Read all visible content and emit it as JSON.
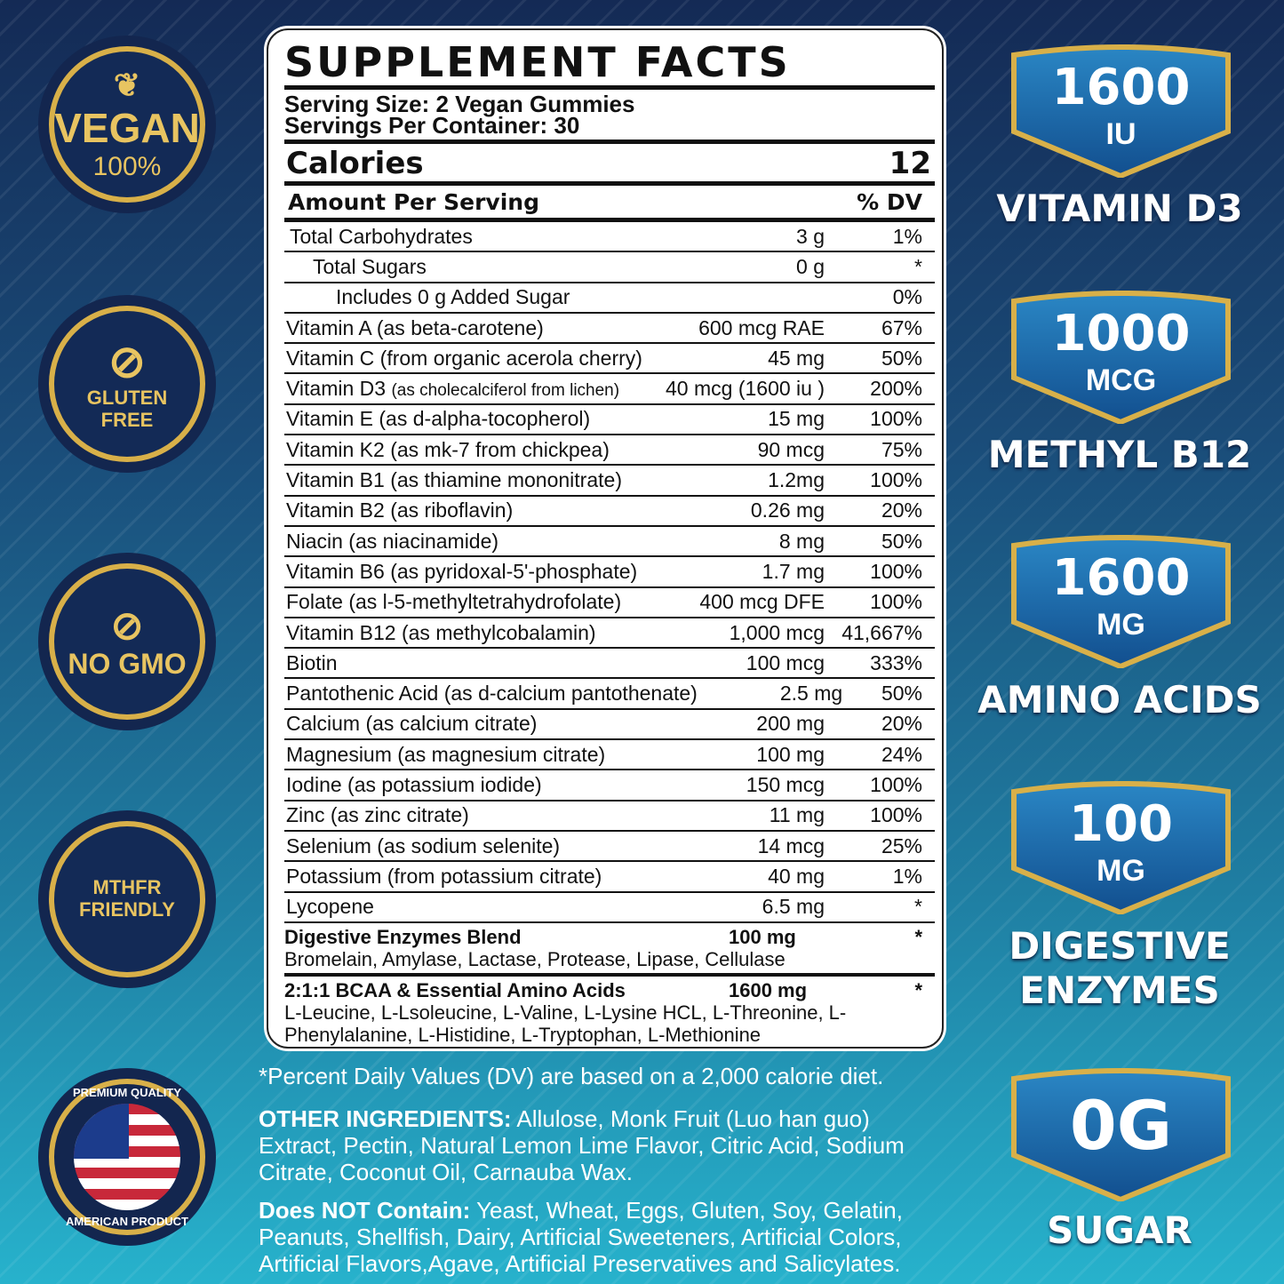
{
  "badges": [
    {
      "name": "vegan",
      "line1": "VEGAN",
      "line2": "100%"
    },
    {
      "name": "gluten-free",
      "line1": "GLUTEN",
      "line2": "FREE"
    },
    {
      "name": "no-gmo",
      "line1": "NO GMO",
      "line2": ""
    },
    {
      "name": "mthfr",
      "line1": "MTHFR",
      "line2": "FRIENDLY"
    },
    {
      "name": "american",
      "line1": "PREMIUM QUALITY",
      "line2": "AMERICAN PRODUCT"
    }
  ],
  "facts": {
    "title": "SUPPLEMENT FACTS",
    "serving_size": "Serving Size: 2 Vegan Gummies",
    "servings": "Servings Per Container: 30",
    "calories_label": "Calories",
    "calories": "12",
    "amount_label": "Amount Per Serving",
    "dv_label": "% DV",
    "rows": [
      {
        "name": "Total Carbohydrates",
        "note": "",
        "amount": "3 g",
        "dv": "1%",
        "indent": 1
      },
      {
        "name": "Total Sugars",
        "note": "",
        "amount": "0 g",
        "dv": "*",
        "indent": 2
      },
      {
        "name": "Includes 0 g Added Sugar",
        "note": "",
        "amount": "",
        "dv": "0%",
        "indent": 3
      },
      {
        "name": "Vitamin A (as beta-carotene)",
        "note": "",
        "amount": "600 mcg RAE",
        "dv": "67%",
        "indent": 0
      },
      {
        "name": "Vitamin C (from organic acerola cherry)",
        "note": "",
        "amount": "45 mg",
        "dv": "50%",
        "indent": 0
      },
      {
        "name": "Vitamin D3 ",
        "note": "(as cholecalciferol from lichen)",
        "amount": "40 mcg (1600 iu )",
        "dv": "200%",
        "indent": 0
      },
      {
        "name": "Vitamin E (as d-alpha-tocopherol)",
        "note": "",
        "amount": "15 mg",
        "dv": "100%",
        "indent": 0
      },
      {
        "name": "Vitamin K2 (as mk-7 from chickpea)",
        "note": "",
        "amount": "90 mcg",
        "dv": "75%",
        "indent": 0
      },
      {
        "name": "Vitamin B1 (as thiamine mononitrate)",
        "note": "",
        "amount": "1.2mg",
        "dv": "100%",
        "indent": 0
      },
      {
        "name": "Vitamin B2 (as riboflavin)",
        "note": "",
        "amount": "0.26 mg",
        "dv": "20%",
        "indent": 0
      },
      {
        "name": "Niacin (as niacinamide)",
        "note": "",
        "amount": "8 mg",
        "dv": "50%",
        "indent": 0
      },
      {
        "name": "Vitamin B6 (as pyridoxal-5'-phosphate)",
        "note": "",
        "amount": "1.7 mg",
        "dv": "100%",
        "indent": 0
      },
      {
        "name": "Folate (as l-5-methyltetrahydrofolate)",
        "note": "",
        "amount": "400 mcg DFE",
        "dv": "100%",
        "indent": 0
      },
      {
        "name": "Vitamin B12 (as methylcobalamin)",
        "note": "",
        "amount": "1,000 mcg",
        "dv": "41,667%",
        "indent": 0
      },
      {
        "name": "Biotin",
        "note": "",
        "amount": "100 mcg",
        "dv": "333%",
        "indent": 0
      },
      {
        "name": "Pantothenic Acid (as d-calcium pantothenate)",
        "note": "",
        "amount": "2.5 mg",
        "dv": "50%",
        "indent": 0
      },
      {
        "name": "Calcium (as calcium citrate)",
        "note": "",
        "amount": "200 mg",
        "dv": "20%",
        "indent": 0
      },
      {
        "name": "Magnesium (as magnesium citrate)",
        "note": "",
        "amount": "100 mg",
        "dv": "24%",
        "indent": 0
      },
      {
        "name": "Iodine (as potassium iodide)",
        "note": "",
        "amount": "150 mcg",
        "dv": "100%",
        "indent": 0
      },
      {
        "name": "Zinc (as zinc citrate)",
        "note": "",
        "amount": "11 mg",
        "dv": "100%",
        "indent": 0
      },
      {
        "name": "Selenium (as sodium selenite)",
        "note": "",
        "amount": "14 mcg",
        "dv": "25%",
        "indent": 0
      },
      {
        "name": "Potassium (from potassium citrate)",
        "note": "",
        "amount": "40 mg",
        "dv": "1%",
        "indent": 0
      },
      {
        "name": "Lycopene",
        "note": "",
        "amount": "6.5 mg",
        "dv": "*",
        "indent": 0
      }
    ],
    "blends": [
      {
        "name": "Digestive Enzymes Blend",
        "amount": "100 mg",
        "dv": "*",
        "detail": "Bromelain, Amylase, Lactase, Protease, Lipase, Cellulase"
      },
      {
        "name": "2:1:1 BCAA & Essential Amino Acids",
        "amount": "1600 mg",
        "dv": "*",
        "detail": "L-Leucine, L-Lsoleucine, L-Valine, L-Lysine HCL, L-Threonine, L-Phenylalanine, L-Histidine, L-Tryptophan, L-Methionine"
      }
    ]
  },
  "footer": {
    "dv_note": "*Percent Daily Values (DV) are based on a 2,000 calorie diet.",
    "other_label": "OTHER INGREDIENTS:",
    "other_text": " Allulose, Monk Fruit (Luo han guo) Extract, Pectin, Natural Lemon Lime Flavor, Citric Acid, Sodium Citrate, Coconut Oil, Carnauba Wax.",
    "not_label": "Does NOT Contain:",
    "not_text": " Yeast, Wheat, Eggs, Gluten, Soy, Gelatin, Peanuts, Shellfish, Dairy, Artificial Sweeteners, Artificial Colors, Artificial Flavors,Agave, Artificial Preservatives and Salicylates."
  },
  "highlights": [
    {
      "value": "1600",
      "unit": "IU",
      "label": "VITAMIN D3"
    },
    {
      "value": "1000",
      "unit": "MCG",
      "label": "METHYL B12"
    },
    {
      "value": "1600",
      "unit": "MG",
      "label": "AMINO ACIDS"
    },
    {
      "value": "100",
      "unit": "MG",
      "label": "DIGESTIVE ENZYMES"
    },
    {
      "value": "0G",
      "unit": "",
      "label": "SUGAR"
    }
  ],
  "colors": {
    "gold": "#d8b049",
    "navy": "#13264f",
    "shield": "#1f6fae"
  }
}
